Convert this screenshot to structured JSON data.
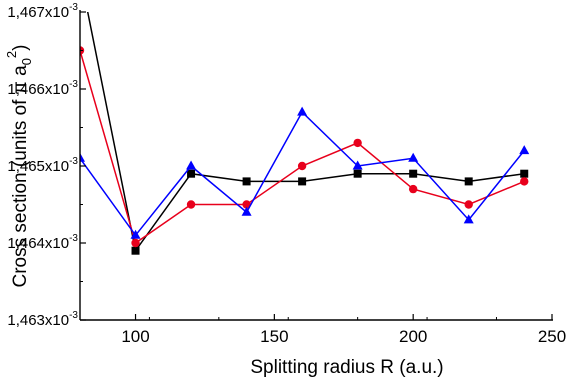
{
  "chart_data": {
    "type": "line",
    "xlabel": "Splitting radius R (a.u.)",
    "ylabel": {
      "prefix": "Cross section (units of ",
      "pi": "π",
      "base": "a",
      "sub": "0",
      "sup": "2",
      "suffix": ")"
    },
    "xlim": [
      80,
      250
    ],
    "ylim": [
      0.001463,
      0.001467
    ],
    "x_ticks": [
      100,
      150,
      200,
      250
    ],
    "x_tick_labels": [
      "100",
      "150",
      "200",
      "250"
    ],
    "y_ticks": [
      0.001463,
      0.001464,
      0.001465,
      0.001466,
      0.001467
    ],
    "y_tick_labels": [
      {
        "mantissa": "1,463x10",
        "exp": "-3"
      },
      {
        "mantissa": "1,464x10",
        "exp": "-3"
      },
      {
        "mantissa": "1,465x10",
        "exp": "-3"
      },
      {
        "mantissa": "1,466x10",
        "exp": "-3"
      },
      {
        "mantissa": "1,467x10",
        "exp": "-3"
      }
    ],
    "grid": false,
    "legend": "none",
    "series": [
      {
        "color": "#000000",
        "marker": "square",
        "x": [
          80,
          100,
          120,
          140,
          160,
          180,
          200,
          220,
          240
        ],
        "y": [
          0.0014675,
          0.0014639,
          0.0014649,
          0.0014648,
          0.0014648,
          0.0014649,
          0.0014649,
          0.0014648,
          0.0014649
        ]
      },
      {
        "color": "#e8001c",
        "marker": "circle",
        "x": [
          80,
          100,
          120,
          140,
          160,
          180,
          200,
          220,
          240
        ],
        "y": [
          0.0014665,
          0.001464,
          0.0014645,
          0.0014645,
          0.001465,
          0.0014653,
          0.0014647,
          0.0014645,
          0.0014648
        ]
      },
      {
        "color": "#0000ff",
        "marker": "triangle",
        "x": [
          80,
          100,
          120,
          140,
          160,
          180,
          200,
          220,
          240
        ],
        "y": [
          0.0014651,
          0.0014641,
          0.001465,
          0.0014644,
          0.0014657,
          0.001465,
          0.0014651,
          0.0014643,
          0.0014652
        ]
      }
    ]
  }
}
